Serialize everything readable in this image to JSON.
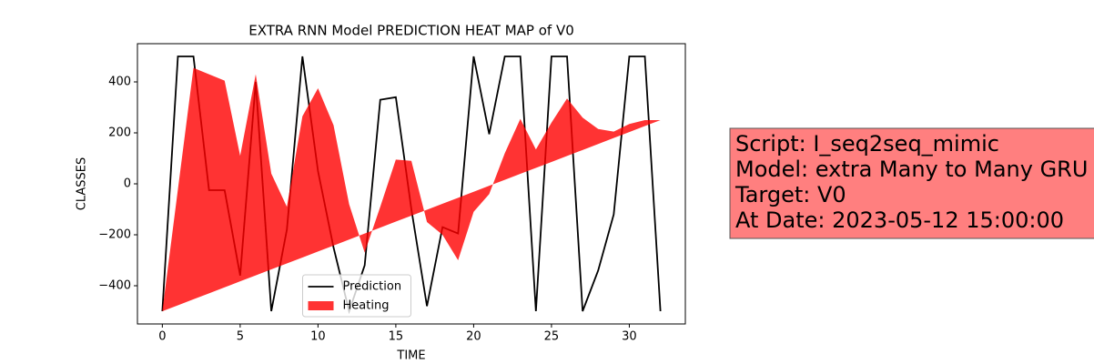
{
  "chart_data": {
    "type": "line-area",
    "title": "EXTRA RNN Model PREDICTION HEAT MAP of V0",
    "xlabel": "TIME",
    "ylabel": "CLASSES",
    "x": [
      0,
      1,
      2,
      3,
      4,
      5,
      6,
      7,
      8,
      9,
      10,
      11,
      12,
      13,
      14,
      15,
      16,
      17,
      18,
      19,
      20,
      21,
      22,
      23,
      24,
      25,
      26,
      27,
      28,
      29,
      30,
      31,
      32
    ],
    "series": [
      {
        "name": "Prediction",
        "kind": "line",
        "color": "#000000",
        "values": [
          -500,
          500,
          500,
          -25,
          -25,
          -360,
          400,
          -500,
          -180,
          500,
          50,
          -250,
          -500,
          -320,
          330,
          340,
          -100,
          -480,
          -170,
          -195,
          500,
          195,
          500,
          500,
          -500,
          500,
          500,
          -500,
          -340,
          -120,
          500,
          500,
          -500
        ]
      },
      {
        "name": "Heating",
        "kind": "area",
        "color": "#ff0000",
        "opacity": 0.8,
        "values": [
          -500,
          -22,
          455,
          430,
          405,
          110,
          430,
          40,
          -90,
          265,
          375,
          230,
          -80,
          -270,
          -90,
          95,
          90,
          -150,
          -200,
          -300,
          -110,
          -40,
          120,
          255,
          135,
          240,
          335,
          260,
          215,
          205,
          235,
          250,
          250
        ],
        "base": [
          -500,
          -476.6,
          -453.1,
          -429.7,
          -406.3,
          -382.8,
          -359.4,
          -335.9,
          -312.5,
          -289.1,
          -265.6,
          -242.2,
          -218.8,
          -195.3,
          -171.9,
          -148.4,
          -125,
          -101.6,
          -78.1,
          -54.7,
          -31.3,
          -7.8,
          15.6,
          39.1,
          62.5,
          85.9,
          109.4,
          132.8,
          156.3,
          179.7,
          203.1,
          226.6,
          250
        ]
      }
    ],
    "xlim": [
      -1.6,
      33.6
    ],
    "ylim": [
      -550,
      550
    ],
    "xticks": [
      0,
      5,
      10,
      15,
      20,
      25,
      30
    ],
    "yticks": [
      {
        "value": -400,
        "label": "−400"
      },
      {
        "value": -200,
        "label": "−200"
      },
      0,
      200,
      400
    ],
    "legend": "lower center",
    "info": [
      "Script: I_seq2seq_mimic",
      "Model: extra Many to Many GRU",
      "Target: V0",
      "At Date: 2023-05-12 15:00:00"
    ]
  }
}
